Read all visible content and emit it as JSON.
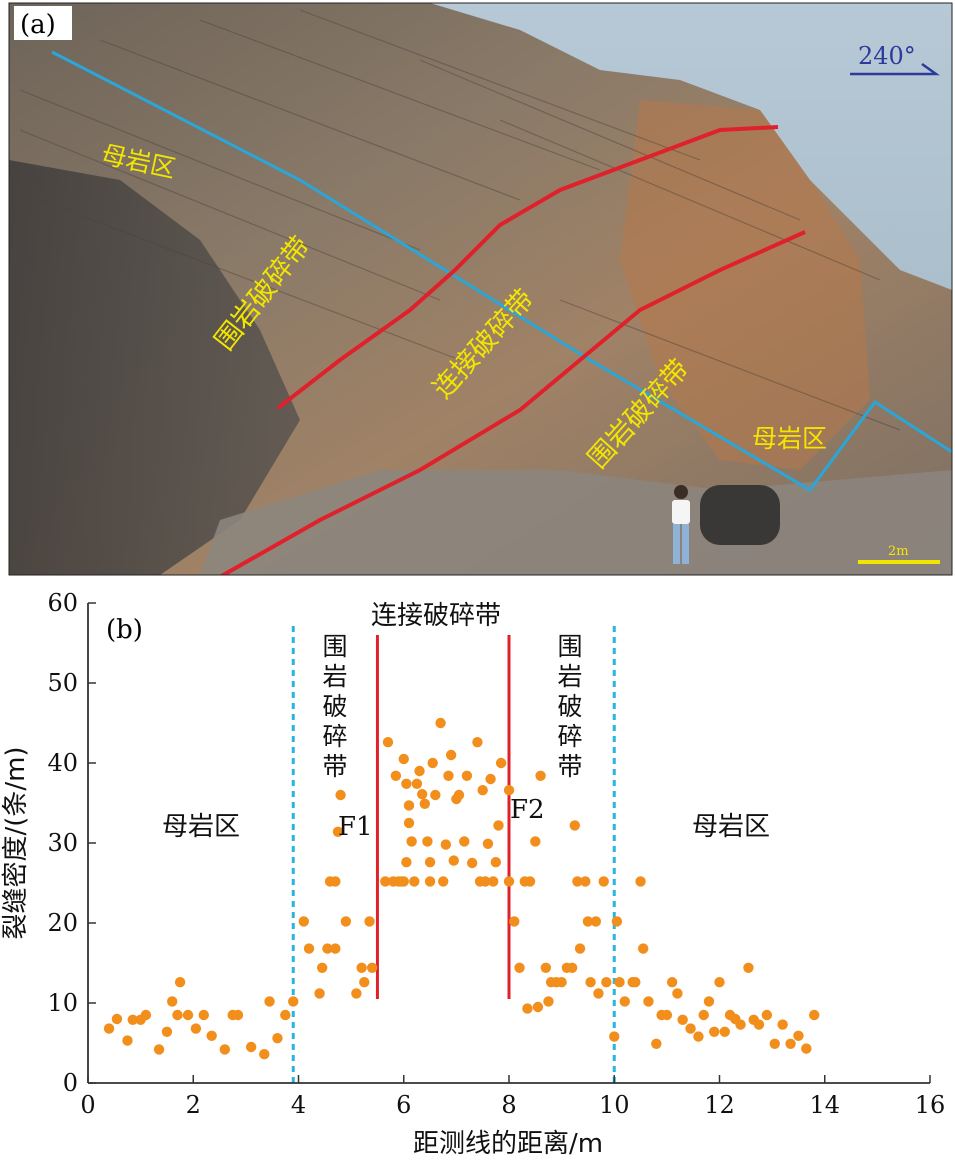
{
  "panel_a": {
    "label": "(a)",
    "azimuth": "240°",
    "scale_text": "2m",
    "zone_labels": {
      "mother_rock_left": "母岩区",
      "wall_rock_left": "围岩破碎带",
      "connection": "连接破碎带",
      "wall_rock_right": "围岩破碎带",
      "mother_rock_right": "母岩区"
    },
    "colors": {
      "fault": "#e0202a",
      "profile": "#2aa6d8",
      "label": "#f2e600",
      "sky": "#a9bfcf"
    }
  },
  "panel_b": {
    "label": "(b)",
    "zone_text": {
      "mother_left": "母岩区",
      "wall_left": "围岩破碎带",
      "connection": "连接破碎带",
      "wall_right": "围岩破碎带",
      "mother_right": "母岩区",
      "fault1": "F1",
      "fault2": "F2"
    },
    "colors": {
      "point": "#f28e1c",
      "fault_line": "#e0202a",
      "boundary": "#27b6e0",
      "axis": "#333333"
    }
  },
  "chart_data": {
    "type": "scatter",
    "xlabel": "距测线的距离/m",
    "ylabel": "裂缝密度/(条/m)",
    "xlim": [
      0,
      16
    ],
    "ylim": [
      0,
      60
    ],
    "xticks": [
      0,
      2,
      4,
      6,
      8,
      10,
      12,
      14,
      16
    ],
    "yticks": [
      0,
      10,
      20,
      30,
      40,
      50,
      60
    ],
    "grid": false,
    "boundaries_dashed": [
      3.9,
      10.0
    ],
    "faults_solid": [
      {
        "name": "F1",
        "x": 5.5,
        "y_from": 10.5,
        "y_to": 56
      },
      {
        "name": "F2",
        "x": 8.0,
        "y_from": 10.5,
        "y_to": 56
      }
    ],
    "points": [
      [
        0.4,
        6.8
      ],
      [
        0.55,
        8.0
      ],
      [
        0.75,
        5.3
      ],
      [
        0.85,
        7.9
      ],
      [
        1.0,
        7.9
      ],
      [
        1.1,
        8.5
      ],
      [
        1.35,
        4.2
      ],
      [
        1.5,
        6.4
      ],
      [
        1.6,
        10.2
      ],
      [
        1.7,
        8.5
      ],
      [
        1.75,
        12.6
      ],
      [
        1.9,
        8.5
      ],
      [
        2.05,
        6.8
      ],
      [
        2.2,
        8.5
      ],
      [
        2.35,
        5.9
      ],
      [
        2.6,
        4.2
      ],
      [
        2.75,
        8.5
      ],
      [
        2.85,
        8.5
      ],
      [
        3.1,
        4.5
      ],
      [
        3.35,
        3.6
      ],
      [
        3.45,
        10.2
      ],
      [
        3.6,
        5.6
      ],
      [
        3.75,
        8.5
      ],
      [
        3.9,
        10.2
      ],
      [
        4.1,
        20.2
      ],
      [
        4.2,
        16.8
      ],
      [
        4.4,
        11.2
      ],
      [
        4.45,
        14.4
      ],
      [
        4.55,
        16.8
      ],
      [
        4.6,
        25.2
      ],
      [
        4.7,
        16.8
      ],
      [
        4.7,
        25.2
      ],
      [
        4.75,
        31.4
      ],
      [
        4.8,
        36.0
      ],
      [
        4.9,
        20.2
      ],
      [
        5.1,
        11.2
      ],
      [
        5.2,
        14.4
      ],
      [
        5.25,
        12.6
      ],
      [
        5.35,
        20.2
      ],
      [
        5.4,
        14.4
      ],
      [
        5.65,
        25.2
      ],
      [
        5.7,
        42.6
      ],
      [
        5.8,
        25.2
      ],
      [
        5.85,
        38.4
      ],
      [
        5.9,
        25.2
      ],
      [
        5.95,
        25.2
      ],
      [
        6.0,
        40.5
      ],
      [
        6.0,
        25.2
      ],
      [
        6.05,
        37.4
      ],
      [
        6.05,
        27.6
      ],
      [
        6.1,
        34.7
      ],
      [
        6.1,
        32.5
      ],
      [
        6.15,
        30.2
      ],
      [
        6.2,
        25.2
      ],
      [
        6.25,
        37.4
      ],
      [
        6.3,
        39.0
      ],
      [
        6.35,
        36.1
      ],
      [
        6.4,
        34.9
      ],
      [
        6.45,
        30.2
      ],
      [
        6.5,
        27.6
      ],
      [
        6.5,
        25.2
      ],
      [
        6.55,
        40.0
      ],
      [
        6.6,
        36.0
      ],
      [
        6.7,
        45.0
      ],
      [
        6.75,
        25.2
      ],
      [
        6.8,
        29.8
      ],
      [
        6.85,
        38.4
      ],
      [
        6.9,
        41.0
      ],
      [
        6.95,
        27.8
      ],
      [
        7.0,
        35.5
      ],
      [
        7.05,
        36.0
      ],
      [
        7.15,
        30.2
      ],
      [
        7.2,
        38.4
      ],
      [
        7.3,
        27.5
      ],
      [
        7.4,
        42.6
      ],
      [
        7.45,
        25.2
      ],
      [
        7.5,
        36.6
      ],
      [
        7.55,
        25.2
      ],
      [
        7.6,
        29.9
      ],
      [
        7.65,
        38.0
      ],
      [
        7.7,
        25.2
      ],
      [
        7.75,
        27.6
      ],
      [
        7.8,
        32.2
      ],
      [
        7.85,
        40.0
      ],
      [
        8.0,
        36.6
      ],
      [
        8.0,
        25.2
      ],
      [
        8.1,
        20.2
      ],
      [
        8.2,
        14.4
      ],
      [
        8.3,
        25.2
      ],
      [
        8.35,
        9.3
      ],
      [
        8.4,
        25.2
      ],
      [
        8.5,
        30.2
      ],
      [
        8.55,
        9.5
      ],
      [
        8.6,
        38.4
      ],
      [
        8.7,
        14.4
      ],
      [
        8.75,
        10.2
      ],
      [
        8.8,
        12.6
      ],
      [
        8.9,
        12.6
      ],
      [
        9.0,
        12.6
      ],
      [
        9.1,
        14.4
      ],
      [
        9.2,
        14.4
      ],
      [
        9.25,
        32.2
      ],
      [
        9.3,
        25.2
      ],
      [
        9.35,
        16.8
      ],
      [
        9.45,
        25.2
      ],
      [
        9.5,
        20.2
      ],
      [
        9.55,
        12.6
      ],
      [
        9.65,
        20.2
      ],
      [
        9.7,
        11.2
      ],
      [
        9.8,
        25.2
      ],
      [
        9.85,
        12.6
      ],
      [
        10.0,
        5.8
      ],
      [
        10.05,
        20.2
      ],
      [
        10.1,
        12.6
      ],
      [
        10.2,
        10.2
      ],
      [
        10.35,
        12.6
      ],
      [
        10.4,
        12.6
      ],
      [
        10.5,
        25.2
      ],
      [
        10.55,
        16.8
      ],
      [
        10.65,
        10.2
      ],
      [
        10.8,
        4.9
      ],
      [
        10.9,
        8.5
      ],
      [
        11.0,
        8.5
      ],
      [
        11.1,
        12.6
      ],
      [
        11.2,
        11.2
      ],
      [
        11.3,
        7.9
      ],
      [
        11.45,
        6.8
      ],
      [
        11.6,
        5.8
      ],
      [
        11.7,
        8.5
      ],
      [
        11.8,
        10.2
      ],
      [
        11.9,
        6.4
      ],
      [
        12.0,
        12.6
      ],
      [
        12.1,
        6.4
      ],
      [
        12.2,
        8.5
      ],
      [
        12.3,
        8.0
      ],
      [
        12.4,
        7.3
      ],
      [
        12.55,
        14.4
      ],
      [
        12.65,
        7.9
      ],
      [
        12.75,
        7.3
      ],
      [
        12.9,
        8.5
      ],
      [
        13.05,
        4.9
      ],
      [
        13.2,
        7.3
      ],
      [
        13.35,
        4.9
      ],
      [
        13.5,
        5.9
      ],
      [
        13.65,
        4.3
      ],
      [
        13.8,
        8.5
      ]
    ]
  }
}
